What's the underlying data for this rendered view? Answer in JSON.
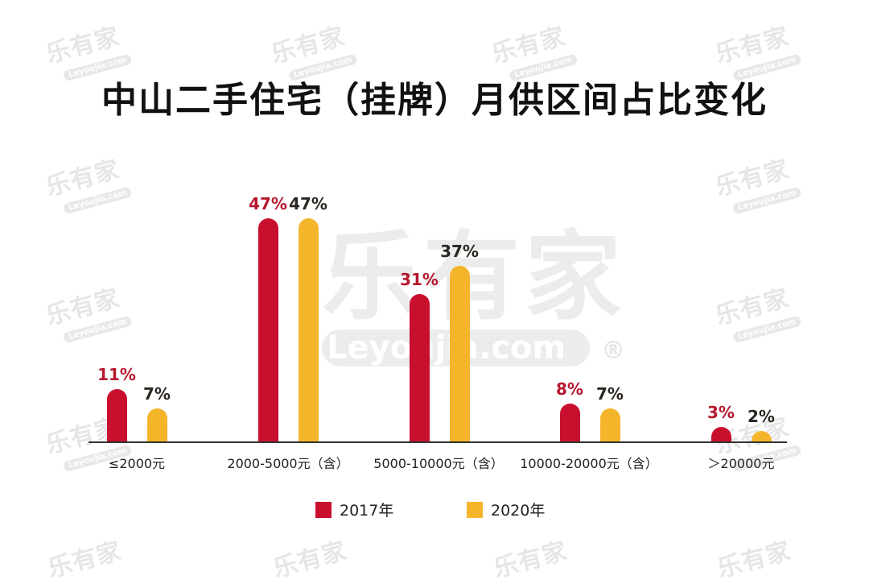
{
  "title": "中山二手住宅（挂牌）月供区间占比变化",
  "watermark": {
    "cn": "乐有家",
    "en": "Leyoujia.com",
    "reg": "®"
  },
  "colors": {
    "2017": "#c8102e",
    "2020": "#f5b52a",
    "label2017": "#b5182e",
    "label2020": "#2b2620"
  },
  "chart_data": {
    "type": "bar",
    "title": "中山二手住宅（挂牌）月供区间占比变化",
    "categories": [
      "≤2000元",
      "2000-5000元（含）",
      "5000-10000元（含）",
      "10000-20000元（含）",
      "＞20000元"
    ],
    "series": [
      {
        "name": "2017年",
        "values": [
          11,
          47,
          31,
          8,
          3
        ]
      },
      {
        "name": "2020年",
        "values": [
          7,
          47,
          37,
          7,
          2
        ]
      }
    ],
    "value_labels": {
      "2017年": [
        "11%",
        "47%",
        "31%",
        "8%",
        "3%"
      ],
      "2020年": [
        "7%",
        "47%",
        "37%",
        "7%",
        "2%"
      ]
    },
    "xlabel": "",
    "ylabel": "",
    "unit": "%",
    "grid": false,
    "legend_position": "bottom"
  },
  "legend": [
    {
      "label": "2017年"
    },
    {
      "label": "2020年"
    }
  ]
}
